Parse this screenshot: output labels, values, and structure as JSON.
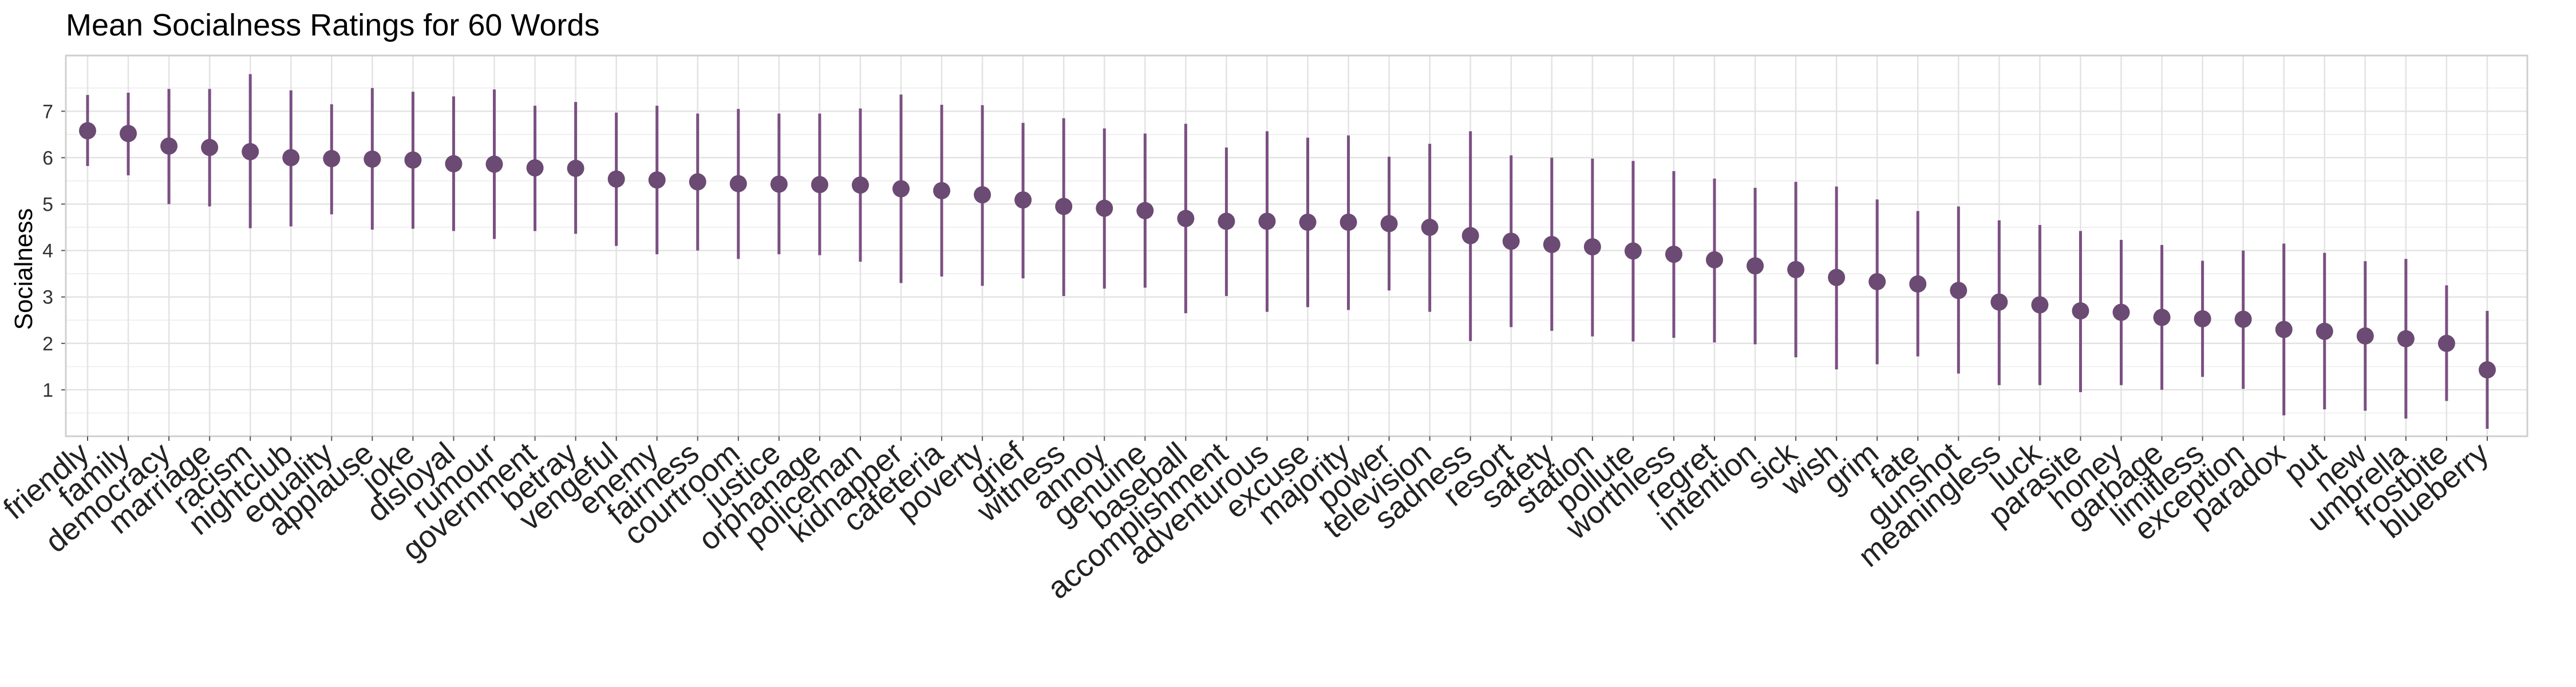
{
  "chart_data": {
    "type": "scatter",
    "title": "Mean Socialness Ratings for 60 Words",
    "xlabel": "",
    "ylabel": "Socialness",
    "yticks": [
      "1",
      "2",
      "3",
      "4",
      "5",
      "6",
      "7"
    ],
    "ylim": [
      0,
      8.2
    ],
    "grid": true,
    "legend": "none",
    "colors": {
      "point": "#6b4a73",
      "errorbar": "#7b4f82",
      "grid": "#e3e3e3",
      "panel_border": "#cfcfcf"
    },
    "categories": [
      "friendly",
      "family",
      "democracy",
      "marriage",
      "racism",
      "nightclub",
      "equality",
      "applause",
      "joke",
      "disloyal",
      "rumour",
      "government",
      "betray",
      "vengeful",
      "enemy",
      "fairness",
      "courtroom",
      "justice",
      "orphanage",
      "policeman",
      "kidnapper",
      "cafeteria",
      "poverty",
      "grief",
      "witness",
      "annoy",
      "genuine",
      "baseball",
      "accomplishment",
      "adventurous",
      "excuse",
      "majority",
      "power",
      "television",
      "sadness",
      "resort",
      "safety",
      "station",
      "pollute",
      "worthless",
      "regret",
      "intention",
      "sick",
      "wish",
      "grim",
      "fate",
      "gunshot",
      "meaningless",
      "luck",
      "parasite",
      "honey",
      "garbage",
      "limitless",
      "exception",
      "paradox",
      "put",
      "new",
      "umbrella",
      "frostbite",
      "blueberry"
    ],
    "values": [
      6.58,
      6.52,
      6.25,
      6.22,
      6.13,
      6.0,
      5.98,
      5.97,
      5.95,
      5.87,
      5.86,
      5.78,
      5.77,
      5.54,
      5.52,
      5.48,
      5.44,
      5.43,
      5.42,
      5.41,
      5.33,
      5.29,
      5.2,
      5.09,
      4.95,
      4.91,
      4.86,
      4.69,
      4.63,
      4.63,
      4.61,
      4.61,
      4.58,
      4.5,
      4.32,
      4.2,
      4.13,
      4.08,
      3.99,
      3.92,
      3.8,
      3.67,
      3.59,
      3.42,
      3.33,
      3.28,
      3.14,
      2.89,
      2.83,
      2.7,
      2.67,
      2.56,
      2.53,
      2.52,
      2.3,
      2.26,
      2.16,
      2.1,
      2.0,
      1.43
    ],
    "lower": [
      5.82,
      5.62,
      5.0,
      4.95,
      4.48,
      4.52,
      4.78,
      4.45,
      4.47,
      4.42,
      4.25,
      4.42,
      4.36,
      4.1,
      3.92,
      4.0,
      3.82,
      3.92,
      3.9,
      3.76,
      3.3,
      3.44,
      3.24,
      3.4,
      3.02,
      3.18,
      3.2,
      2.65,
      3.02,
      2.68,
      2.78,
      2.72,
      3.14,
      2.68,
      2.05,
      2.35,
      2.27,
      2.15,
      2.04,
      2.12,
      2.02,
      1.98,
      1.7,
      1.44,
      1.55,
      1.72,
      1.35,
      1.1,
      1.1,
      0.95,
      1.1,
      1.0,
      1.28,
      1.02,
      0.45,
      0.58,
      0.55,
      0.38,
      0.76,
      0.16
    ],
    "upper": [
      7.35,
      7.4,
      7.48,
      7.48,
      7.8,
      7.45,
      7.15,
      7.5,
      7.42,
      7.32,
      7.47,
      7.12,
      7.2,
      6.97,
      7.12,
      6.95,
      7.05,
      6.95,
      6.95,
      7.06,
      7.36,
      7.14,
      7.13,
      6.75,
      6.85,
      6.63,
      6.52,
      6.73,
      6.22,
      6.57,
      6.43,
      6.48,
      6.02,
      6.3,
      6.57,
      6.05,
      6.0,
      5.98,
      5.93,
      5.71,
      5.55,
      5.35,
      5.48,
      5.38,
      5.1,
      4.85,
      4.95,
      4.65,
      4.55,
      4.42,
      4.23,
      4.12,
      3.78,
      4.0,
      4.15,
      3.95,
      3.77,
      3.82,
      3.25,
      2.7
    ]
  }
}
